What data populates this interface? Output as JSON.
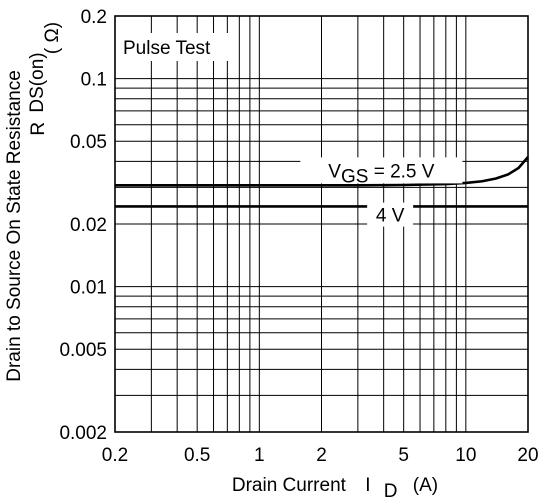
{
  "chart_data": {
    "type": "line",
    "title": "",
    "x_scale": "log",
    "y_scale": "log",
    "xlim": [
      0.2,
      20
    ],
    "ylim": [
      0.002,
      0.2
    ],
    "grid": true,
    "xlabel": {
      "main": "Drain Current",
      "symbol": "I",
      "subscript": "D",
      "unit": "(A)"
    },
    "ylabel": {
      "main": "Drain to Source On State Resistance",
      "symbol": "R",
      "subscript": "DS(on)",
      "unit": "( Ω)"
    },
    "x_ticks": [
      {
        "value": 0.2,
        "label": "0.2"
      },
      {
        "value": 0.5,
        "label": "0.5"
      },
      {
        "value": 1,
        "label": "1"
      },
      {
        "value": 2,
        "label": "2"
      },
      {
        "value": 5,
        "label": "5"
      },
      {
        "value": 10,
        "label": "10"
      },
      {
        "value": 20,
        "label": "20"
      }
    ],
    "y_ticks": [
      {
        "value": 0.2,
        "label": "0.2"
      },
      {
        "value": 0.1,
        "label": "0.1"
      },
      {
        "value": 0.05,
        "label": "0.05"
      },
      {
        "value": 0.02,
        "label": "0.02"
      },
      {
        "value": 0.01,
        "label": "0.01"
      },
      {
        "value": 0.005,
        "label": "0.005"
      },
      {
        "value": 0.002,
        "label": "0.002"
      }
    ],
    "annotation": "Pulse Test",
    "series": [
      {
        "label_main": "V",
        "label_sub": "GS",
        "label_rest": " = 2.5 V",
        "x": [
          0.2,
          1,
          3,
          5,
          8,
          10,
          12,
          14,
          16,
          18,
          20
        ],
        "y": [
          0.0307,
          0.0307,
          0.0307,
          0.0308,
          0.0311,
          0.0315,
          0.0321,
          0.0331,
          0.0346,
          0.0372,
          0.042
        ]
      },
      {
        "label_main": "",
        "label_sub": "",
        "label_rest": "4 V",
        "x": [
          0.2,
          20
        ],
        "y": [
          0.0243,
          0.0243
        ]
      }
    ]
  }
}
